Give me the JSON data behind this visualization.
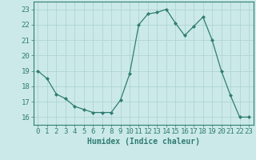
{
  "x": [
    0,
    1,
    2,
    3,
    4,
    5,
    6,
    7,
    8,
    9,
    10,
    11,
    12,
    13,
    14,
    15,
    16,
    17,
    18,
    19,
    20,
    21,
    22,
    23
  ],
  "y": [
    19,
    18.5,
    17.5,
    17.2,
    16.7,
    16.5,
    16.3,
    16.3,
    16.3,
    17.1,
    18.8,
    22.0,
    22.7,
    22.8,
    23.0,
    22.1,
    21.3,
    21.9,
    22.5,
    21.0,
    19.0,
    17.4,
    16.0,
    16.0
  ],
  "line_color": "#2e7d72",
  "marker": "D",
  "marker_size": 2,
  "bg_color": "#cce9e9",
  "grid_color": "#b0d4d4",
  "xlabel": "Humidex (Indice chaleur)",
  "xlim": [
    -0.5,
    23.5
  ],
  "ylim": [
    15.5,
    23.5
  ],
  "yticks": [
    16,
    17,
    18,
    19,
    20,
    21,
    22,
    23
  ],
  "xticks": [
    0,
    1,
    2,
    3,
    4,
    5,
    6,
    7,
    8,
    9,
    10,
    11,
    12,
    13,
    14,
    15,
    16,
    17,
    18,
    19,
    20,
    21,
    22,
    23
  ],
  "xlabel_fontsize": 7,
  "tick_fontsize": 6.5
}
